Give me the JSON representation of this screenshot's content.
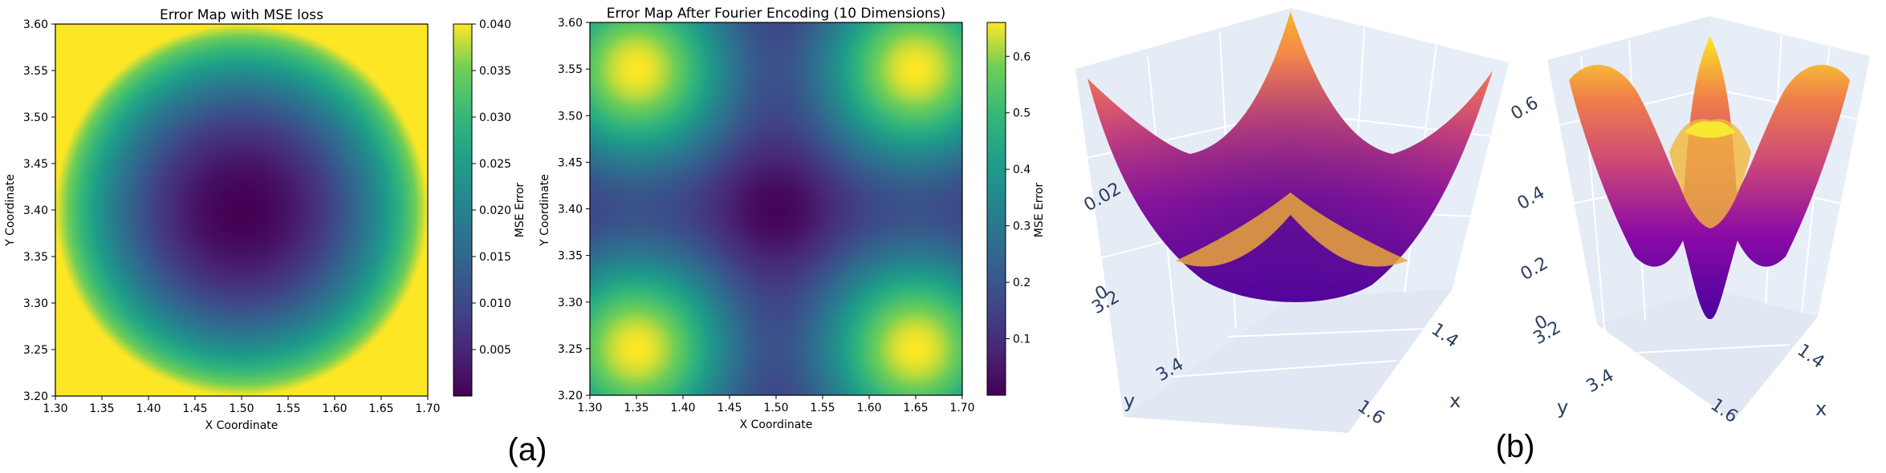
{
  "captions": {
    "a": "(a)",
    "b": "(b)"
  },
  "chart_data": [
    {
      "type": "heatmap",
      "title": "Error Map with MSE loss",
      "xlabel": "X Coordinate",
      "ylabel": "Y Coordinate",
      "xlim": [
        1.3,
        1.7
      ],
      "ylim": [
        3.2,
        3.6
      ],
      "x_ticks": [
        "1.30",
        "1.35",
        "1.40",
        "1.45",
        "1.50",
        "1.55",
        "1.60",
        "1.65",
        "1.70"
      ],
      "y_ticks": [
        "3.20",
        "3.25",
        "3.30",
        "3.35",
        "3.40",
        "3.45",
        "3.50",
        "3.55",
        "3.60"
      ],
      "colorbar": {
        "label": "MSE Error",
        "range": [
          0,
          0.04
        ],
        "ticks": [
          "0.005",
          "0.010",
          "0.015",
          "0.020",
          "0.025",
          "0.030",
          "0.035",
          "0.040"
        ],
        "colormap": "viridis"
      },
      "function": "(x-1.5)^2 + (y-3.4)^2",
      "center": [
        1.5,
        3.4
      ],
      "min_value": 0.0,
      "max_value": 0.04
    },
    {
      "type": "heatmap",
      "title": "Error Map After Fourier Encoding (10 Dimensions)",
      "xlabel": "X Coordinate",
      "ylabel": "Y Coordinate",
      "xlim": [
        1.3,
        1.7
      ],
      "ylim": [
        3.2,
        3.6
      ],
      "x_ticks": [
        "1.30",
        "1.35",
        "1.40",
        "1.45",
        "1.50",
        "1.55",
        "1.60",
        "1.65",
        "1.70"
      ],
      "y_ticks": [
        "3.20",
        "3.25",
        "3.30",
        "3.35",
        "3.40",
        "3.45",
        "3.50",
        "3.55",
        "3.60"
      ],
      "colorbar": {
        "label": "MSE Error",
        "range": [
          0,
          0.66
        ],
        "ticks": [
          "0.1",
          "0.2",
          "0.3",
          "0.4",
          "0.5",
          "0.6"
        ],
        "colormap": "viridis"
      },
      "peaks": [
        [
          1.35,
          3.25
        ],
        [
          1.35,
          3.55
        ],
        [
          1.65,
          3.25
        ],
        [
          1.65,
          3.55
        ]
      ],
      "minimum": [
        1.5,
        3.4
      ],
      "min_value": 0.0,
      "max_value": 0.66
    },
    {
      "type": "surface3d",
      "colormap": "plasma",
      "z_ticks": [
        "0",
        "0.02"
      ],
      "y_ticks": [
        "3.2",
        "3.4"
      ],
      "x_ticks": [
        "1.4",
        "1.6"
      ],
      "axis_labels": {
        "x": "x",
        "y": "y"
      }
    },
    {
      "type": "surface3d",
      "colormap": "plasma",
      "z_ticks": [
        "0",
        "0.2",
        "0.4",
        "0.6"
      ],
      "y_ticks": [
        "3.2",
        "3.4"
      ],
      "x_ticks": [
        "1.4",
        "1.6"
      ],
      "axis_labels": {
        "x": "x",
        "y": "y"
      }
    }
  ]
}
